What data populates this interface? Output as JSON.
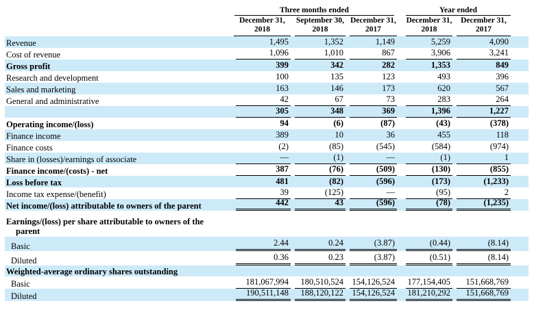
{
  "colors": {
    "stripe_blue": "#cdeaf8",
    "rule_black": "#000000",
    "background": "#ffffff"
  },
  "table": {
    "groups": [
      {
        "label": "Three months ended",
        "span": 3
      },
      {
        "label": "Year ended",
        "span": 2
      }
    ],
    "columns": [
      {
        "line1": "December 31,",
        "line2": "2018"
      },
      {
        "line1": "September 30,",
        "line2": "2018"
      },
      {
        "line1": "December 31,",
        "line2": "2017"
      },
      {
        "line1": "December 31,",
        "line2": "2018"
      },
      {
        "line1": "December 31,",
        "line2": "2017"
      }
    ],
    "rows": [
      {
        "label": "Revenue",
        "kind": "data",
        "shade": true,
        "bold": false,
        "indent": 0,
        "rule": "none",
        "values": [
          "1,495",
          "1,352",
          "1,149",
          "5,259",
          "4,090"
        ]
      },
      {
        "label": "Cost of revenue",
        "kind": "data",
        "shade": false,
        "bold": false,
        "indent": 0,
        "rule": "single",
        "values": [
          "1,096",
          "1,010",
          "867",
          "3,906",
          "3,241"
        ]
      },
      {
        "label": "Gross profit",
        "kind": "data",
        "shade": true,
        "bold": true,
        "indent": 0,
        "rule": "none",
        "values": [
          "399",
          "342",
          "282",
          "1,353",
          "849"
        ]
      },
      {
        "label": "Research and development",
        "kind": "data",
        "shade": false,
        "bold": false,
        "indent": 0,
        "rule": "none",
        "values": [
          "100",
          "135",
          "123",
          "493",
          "396"
        ]
      },
      {
        "label": "Sales and marketing",
        "kind": "data",
        "shade": true,
        "bold": false,
        "indent": 0,
        "rule": "none",
        "values": [
          "163",
          "146",
          "173",
          "620",
          "567"
        ]
      },
      {
        "label": "General and administrative",
        "kind": "data",
        "shade": false,
        "bold": false,
        "indent": 0,
        "rule": "single",
        "values": [
          "42",
          "67",
          "73",
          "283",
          "264"
        ]
      },
      {
        "label": "",
        "kind": "data",
        "shade": true,
        "bold": true,
        "indent": 0,
        "rule": "single",
        "values": [
          "305",
          "348",
          "369",
          "1,396",
          "1,227"
        ]
      },
      {
        "label": "Operating income/(loss)",
        "kind": "data",
        "shade": false,
        "bold": true,
        "indent": 0,
        "rule": "none",
        "values": [
          "94",
          "(6)",
          "(87)",
          "(43)",
          "(378)"
        ]
      },
      {
        "label": "Finance income",
        "kind": "data",
        "shade": true,
        "bold": false,
        "indent": 0,
        "rule": "none",
        "values": [
          "389",
          "10",
          "36",
          "455",
          "118"
        ]
      },
      {
        "label": "Finance costs",
        "kind": "data",
        "shade": false,
        "bold": false,
        "indent": 0,
        "rule": "none",
        "values": [
          "(2)",
          "(85)",
          "(545)",
          "(584)",
          "(974)"
        ]
      },
      {
        "label": "Share in (losses)/earnings of associate",
        "kind": "data",
        "shade": true,
        "bold": false,
        "indent": 0,
        "rule": "single",
        "values": [
          "—",
          "(1)",
          "—",
          "(1)",
          "1"
        ]
      },
      {
        "label": "Finance income/(costs) - net",
        "kind": "data",
        "shade": false,
        "bold": true,
        "indent": 0,
        "rule": "single",
        "values": [
          "387",
          "(76)",
          "(509)",
          "(130)",
          "(855)"
        ]
      },
      {
        "label": "Loss before tax",
        "kind": "data",
        "shade": true,
        "bold": true,
        "indent": 0,
        "rule": "none",
        "values": [
          "481",
          "(82)",
          "(596)",
          "(173)",
          "(1,233)"
        ]
      },
      {
        "label": "Income tax expense/(benefit)",
        "kind": "data",
        "shade": false,
        "bold": false,
        "indent": 0,
        "rule": "single",
        "values": [
          "39",
          "(125)",
          "—",
          "(95)",
          "2"
        ]
      },
      {
        "label": "Net income/(loss) attributable to owners of the parent",
        "kind": "data",
        "shade": true,
        "bold": true,
        "indent": 0,
        "rule": "double",
        "values": [
          "442",
          "43",
          "(596)",
          "(78)",
          "(1,235)"
        ]
      },
      {
        "label": "",
        "kind": "spacer",
        "shade": false,
        "bold": false,
        "indent": 0,
        "rule": "none",
        "values": []
      },
      {
        "label": "Earnings/(loss) per share attributable to owners of the parent",
        "kind": "eps-head",
        "shade": false,
        "bold": true,
        "indent": 0,
        "hang": true,
        "rule": "none",
        "values": []
      },
      {
        "label": "Basic",
        "kind": "eps",
        "shade": true,
        "bold": false,
        "indent": 1,
        "rule": "double",
        "values": [
          "2.44",
          "0.24",
          "(3.87)",
          "(0.44)",
          "(8.14)"
        ]
      },
      {
        "label": "Diluted",
        "kind": "eps",
        "shade": false,
        "bold": false,
        "indent": 1,
        "rule": "double",
        "values": [
          "0.36",
          "0.23",
          "(3.87)",
          "(0.51)",
          "(8.14)"
        ]
      },
      {
        "label": "Weighted-average ordinary shares outstanding",
        "kind": "sec-head",
        "shade": true,
        "bold": true,
        "indent": 0,
        "rule": "none",
        "values": []
      },
      {
        "label": "Basic",
        "kind": "share",
        "shade": false,
        "bold": false,
        "indent": 1,
        "rule": "single",
        "values": [
          "181,067,994",
          "180,510,524",
          "154,126,524",
          "177,154,405",
          "151,668,769"
        ]
      },
      {
        "label": "Diluted",
        "kind": "share",
        "shade": true,
        "bold": false,
        "indent": 1,
        "rule": "double",
        "values": [
          "190,511,148",
          "188,120,122",
          "154,126,524",
          "181,210,292",
          "151,668,769"
        ]
      }
    ]
  }
}
